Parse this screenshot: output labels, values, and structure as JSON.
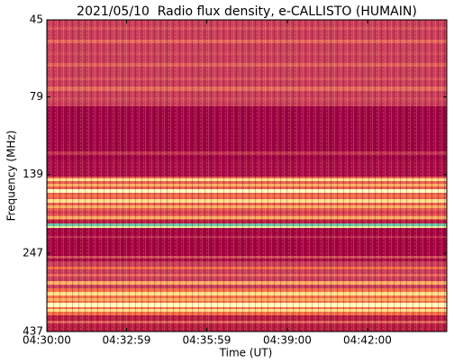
{
  "chart_data": {
    "type": "spectrogram",
    "title": "2021/05/10  Radio flux density, e-CALLISTO (HUMAIN)",
    "x_label": "Time (UT)",
    "y_label": "Frequency (MHz)",
    "xlim": [
      "04:30:00",
      "04:44:58"
    ],
    "xticks": [
      "04:30:00",
      "04:32:59",
      "04:35:59",
      "04:39:00",
      "04:42:00"
    ],
    "ylim": [
      45,
      437
    ],
    "yticks": [
      45,
      79,
      139,
      247,
      437
    ],
    "y_log": true,
    "y_inverted": true
  }
}
